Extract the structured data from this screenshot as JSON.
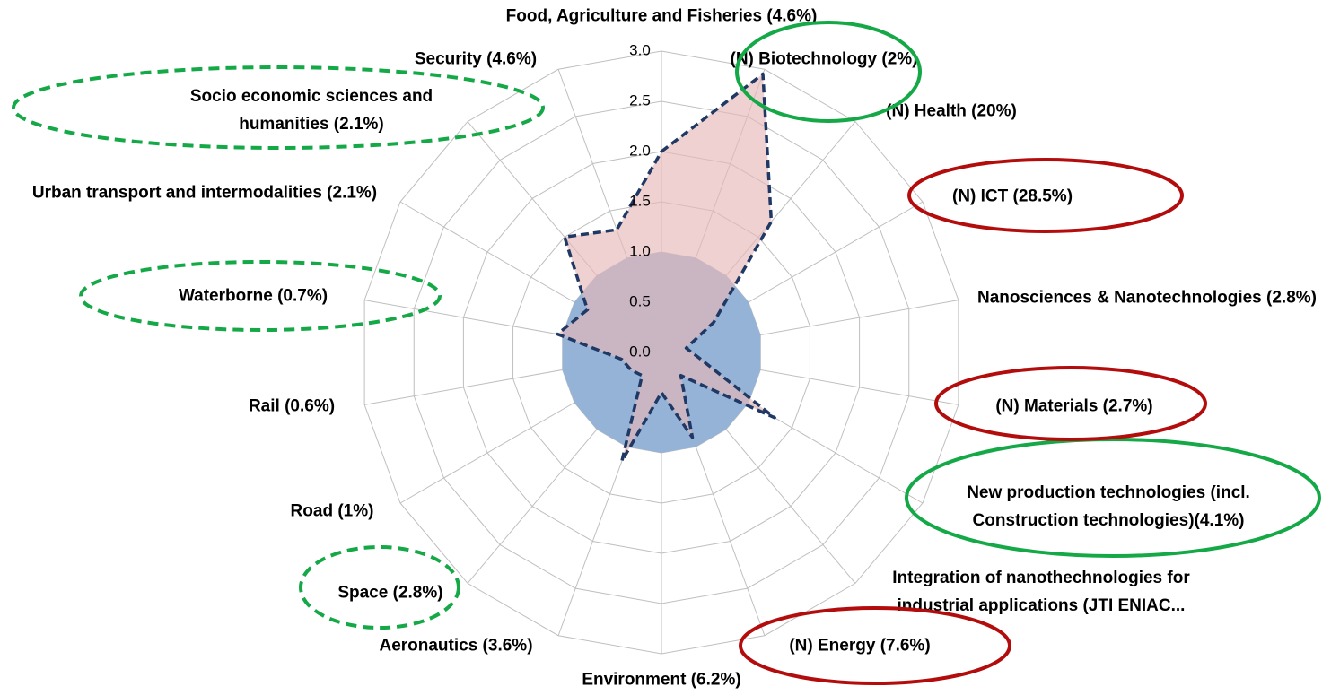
{
  "chart_data": {
    "type": "radar",
    "categories": [
      "Food, Agriculture and Fisheries (4.6%)",
      "(N) Biotechnology (2%)",
      "(N) Health (20%)",
      "(N) ICT (28.5%)",
      "Nanosciences & Nanotechnologies (2.8%)",
      "(N) Materials (2.7%)",
      "New production technologies (incl. Construction technologies)(4.1%)",
      "Integration of nanothechnologies for industrial applications (JTI ENIAC...",
      "(N) Energy (7.6%)",
      "Environment (6.2%)",
      "Aeronautics (3.6%)",
      "Space (2.8%)",
      "Road (1%)",
      "Rail (0.6%)",
      "Waterborne (0.7%)",
      "Urban transport and intermodalities (2.1%)",
      "Socio economic sciences and humanities (2.1%)",
      "Security (4.6%)"
    ],
    "series": [
      {
        "color": "#95b3d7",
        "values": [
          1,
          1,
          1,
          1,
          1,
          1,
          1,
          1,
          1,
          1,
          1,
          1,
          1,
          1,
          1,
          1,
          1,
          1
        ]
      },
      {
        "color": "#e6b9b8",
        "values": [
          2.0,
          2.95,
          1.7,
          0.6,
          0.25,
          0.4,
          1.3,
          0.3,
          0.9,
          0.4,
          1.15,
          0.3,
          0.35,
          0.4,
          1.05,
          0.85,
          1.5,
          1.3
        ]
      }
    ],
    "ylim": [
      0,
      3
    ],
    "yticks": [
      {
        "value": 0,
        "label": "0.0"
      },
      0.5,
      {
        "value": 1,
        "label": "1.0"
      },
      1.5,
      {
        "value": 2,
        "label": "2.0"
      },
      2.5,
      {
        "value": 3,
        "label": "3.0"
      }
    ],
    "grid": true
  }
}
